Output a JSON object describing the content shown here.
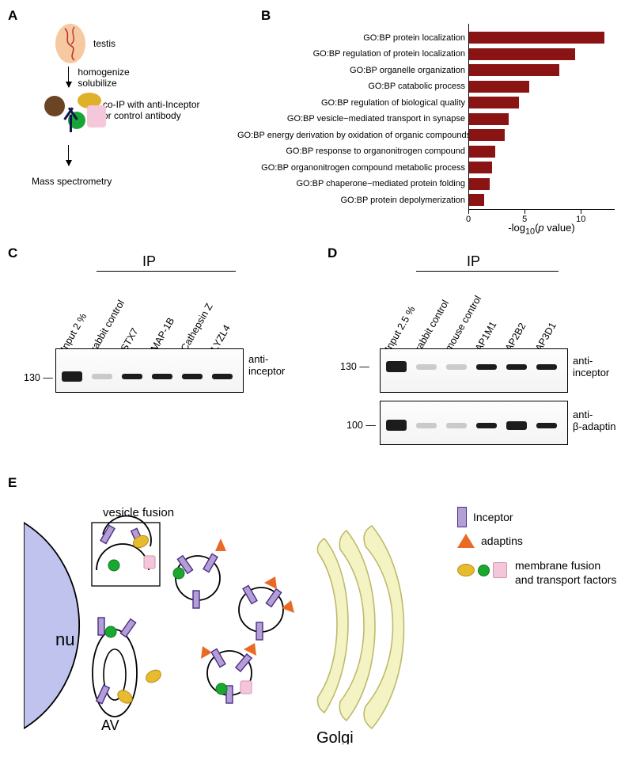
{
  "panelA": {
    "label": "A",
    "testis_label": "testis",
    "step1": "homogenize\nsolubilize",
    "step2": "co-IP with anti-Inceptor\nor control antibody",
    "step3": "Mass spectrometry",
    "testis_fill": "#f6c9a0",
    "shapes": {
      "brown": "#6a4423",
      "yellow": "#dfb12b",
      "green": "#17a636",
      "pink": "#f5c7da",
      "antibody": "#14114f"
    }
  },
  "panelB": {
    "label": "B",
    "type": "horizontal-bar",
    "xlabel": "-log₁₀(p value)",
    "xlim": [
      0,
      13
    ],
    "xticks": [
      0,
      5,
      10
    ],
    "bar_color": "#8a1414",
    "label_fontsize": 11,
    "rows": [
      {
        "label": "GO:BP protein localization",
        "value": 12.1
      },
      {
        "label": "GO:BP regulation of protein localization",
        "value": 9.5
      },
      {
        "label": "GO:BP organelle organization",
        "value": 8.1
      },
      {
        "label": "GO:BP catabolic process",
        "value": 5.4
      },
      {
        "label": "GO:BP regulation of biological quality",
        "value": 4.5
      },
      {
        "label": "GO:BP vesicle−mediated transport in synapse",
        "value": 3.6
      },
      {
        "label": "GO:BP energy derivation by oxidation of organic compounds",
        "value": 3.2
      },
      {
        "label": "GO:BP response to organonitrogen compound",
        "value": 2.4
      },
      {
        "label": "GO:BP organonitrogen compound metabolic process",
        "value": 2.1
      },
      {
        "label": "GO:BP chaperone−mediated protein folding",
        "value": 1.9
      },
      {
        "label": "GO:BP protein depolymerization",
        "value": 1.4
      }
    ]
  },
  "panelC": {
    "label": "C",
    "ip_title": "IP",
    "lanes": [
      "Input 2 %",
      "rabbit control",
      "STX7",
      "MAP-1B",
      "Cathepsin Z",
      "LYZL4"
    ],
    "size_marker": "130",
    "side_label": "anti-\ninceptor",
    "band_lanes": [
      0,
      2,
      3,
      4,
      5
    ],
    "faint_lanes": [
      1
    ]
  },
  "panelD": {
    "label": "D",
    "ip_title": "IP",
    "lanes": [
      "Input 2.5 %",
      "rabbit control",
      "mouse control",
      "AP1M1",
      "AP2B2",
      "AP3D1"
    ],
    "size_markers": [
      "130",
      "100"
    ],
    "side_labels": [
      "anti-\ninceptor",
      "anti-\nβ-adaptin"
    ],
    "blot1_bands": [
      0,
      3,
      4,
      5
    ],
    "blot1_faint": [
      1,
      2
    ],
    "blot2_bands": [
      0,
      3,
      4,
      5
    ],
    "blot2_faint": [
      1,
      2
    ]
  },
  "panelE": {
    "label": "E",
    "labels": {
      "vesicle_fusion": "vesicle fusion",
      "nu": "nu",
      "av": "AV",
      "golgi": "Golgi"
    },
    "legend": {
      "inceptor": "Inceptor",
      "adaptins": "adaptins",
      "membrane": "membrane fusion\nand transport factors"
    },
    "colors": {
      "nucleus": "#c1c3ef",
      "golgi": "#f4f3c4",
      "golgi_stroke": "#bdbb6b",
      "inceptor_fill": "#b49ed6",
      "inceptor_stroke": "#4a2d85",
      "adaptin": "#e96a24",
      "mem_yellow": "#e7bb2f",
      "mem_green": "#1aa82e",
      "mem_pink": "#f3c7d9"
    }
  }
}
